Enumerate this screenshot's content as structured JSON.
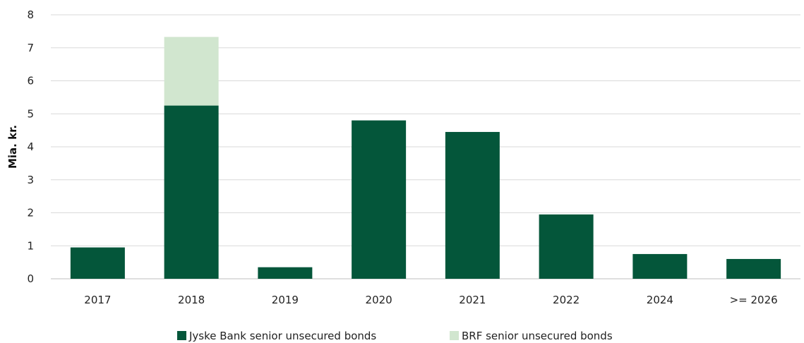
{
  "chart_data": {
    "type": "bar",
    "stacked": true,
    "categories": [
      "2017",
      "2018",
      "2019",
      "2020",
      "2021",
      "2022",
      "2024",
      ">= 2026"
    ],
    "series": [
      {
        "name": "Jyske Bank senior unsecured bonds",
        "color": "#04563a",
        "values": [
          0.95,
          5.25,
          0.35,
          4.8,
          4.45,
          1.95,
          0.75,
          0.6
        ]
      },
      {
        "name": "BRF senior unsecured bonds",
        "color": "#d1e6cf",
        "values": [
          0,
          2.08,
          0,
          0,
          0,
          0,
          0,
          0
        ]
      }
    ],
    "ylabel": "Mia. kr.",
    "ylim": [
      0,
      8
    ],
    "yticks": [
      "0",
      "1",
      "2",
      "3",
      "4",
      "5",
      "6",
      "7",
      "8"
    ],
    "grid": true,
    "legend_position": "bottom"
  }
}
